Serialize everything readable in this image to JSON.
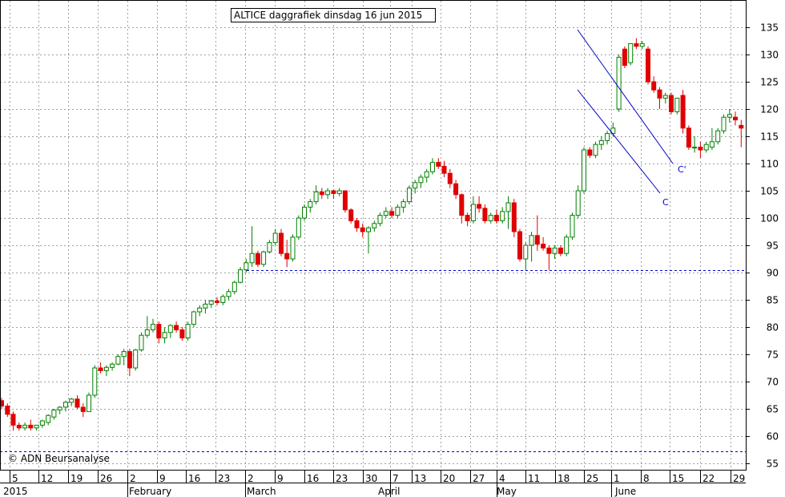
{
  "chart_data": {
    "type": "candlestick",
    "title": "ALTICE daggrafiek dinsdag 16 jun 2015",
    "watermark": "© ADN Beursanalyse",
    "ylim": [
      53,
      138
    ],
    "y_ticks": [
      55,
      60,
      65,
      70,
      75,
      80,
      85,
      90,
      95,
      100,
      105,
      110,
      115,
      120,
      125,
      130,
      135
    ],
    "x_day_ticks": [
      "5",
      "12",
      "19",
      "26",
      "2",
      "9",
      "16",
      "23",
      "2",
      "9",
      "16",
      "23",
      "30",
      "7",
      "13",
      "20",
      "27",
      "4",
      "11",
      "18",
      "25",
      "1",
      "8",
      "15",
      "22",
      "29"
    ],
    "x_month_labels": [
      "2015",
      "February",
      "March",
      "April",
      "May",
      "June"
    ],
    "colors": {
      "up": "#008000",
      "down": "#e00000",
      "grid": "#a0a0a0",
      "reference": "#0000cc",
      "channel": "#0000cc"
    },
    "reference_lines": [
      90.5,
      57.2
    ],
    "channel_labels": [
      "C'",
      "C"
    ],
    "candles": [
      [
        66.5,
        67,
        65,
        65.5
      ],
      [
        65.5,
        66,
        63.5,
        64
      ],
      [
        64,
        64.5,
        61,
        62
      ],
      [
        62,
        62.5,
        61,
        61.5
      ],
      [
        61.5,
        62.5,
        61,
        62
      ],
      [
        62,
        63,
        61,
        61.5
      ],
      [
        61.5,
        62,
        61,
        62
      ],
      [
        62,
        63,
        61.5,
        62.8
      ],
      [
        62.5,
        64,
        62,
        63.8
      ],
      [
        63.5,
        65,
        63,
        64.8
      ],
      [
        64.8,
        65.5,
        64,
        65.3
      ],
      [
        65.3,
        66.5,
        64.5,
        66.2
      ],
      [
        66.2,
        67,
        65.5,
        66.8
      ],
      [
        66.8,
        67.5,
        65,
        65.3
      ],
      [
        65.3,
        66,
        63.5,
        64.5
      ],
      [
        64.5,
        68,
        64.5,
        67.5
      ],
      [
        67.5,
        73,
        67,
        72.5
      ],
      [
        72.5,
        73.5,
        71.5,
        72
      ],
      [
        72,
        73,
        71,
        72.6
      ],
      [
        72.6,
        73.5,
        72,
        73.2
      ],
      [
        73.2,
        75,
        73,
        74.6
      ],
      [
        74.6,
        76,
        73,
        75.5
      ],
      [
        75.5,
        76,
        71,
        72.5
      ],
      [
        72.5,
        76,
        72,
        75.8
      ],
      [
        75.8,
        79,
        75.5,
        78.5
      ],
      [
        78.5,
        82,
        78,
        79.5
      ],
      [
        79.5,
        81.5,
        79,
        80.5
      ],
      [
        80.5,
        81,
        77,
        78
      ],
      [
        78,
        80,
        77,
        79
      ],
      [
        79,
        80.5,
        78,
        80.3
      ],
      [
        80.3,
        81,
        79,
        79.5
      ],
      [
        79.5,
        80,
        77.5,
        78
      ],
      [
        78,
        81,
        77.5,
        80.5
      ],
      [
        80.5,
        83,
        80,
        82.8
      ],
      [
        82.8,
        84,
        82,
        83.5
      ],
      [
        83.5,
        85,
        82.5,
        84.2
      ],
      [
        84.2,
        85,
        83.5,
        84.8
      ],
      [
        84.8,
        85.5,
        84,
        84.5
      ],
      [
        84.5,
        86,
        84,
        85.6
      ],
      [
        85.6,
        87,
        85,
        86.5
      ],
      [
        86.5,
        88.5,
        86,
        88.2
      ],
      [
        88.2,
        91,
        88,
        90.5
      ],
      [
        90.5,
        92.5,
        90,
        91.8
      ],
      [
        91.8,
        98.5,
        91,
        93.5
      ],
      [
        93.5,
        94,
        91,
        91.5
      ],
      [
        91.5,
        94,
        91,
        93.8
      ],
      [
        93.8,
        96,
        93.5,
        95.5
      ],
      [
        95.5,
        98,
        95,
        97.2
      ],
      [
        97.2,
        98,
        93,
        93.5
      ],
      [
        93.5,
        96,
        91,
        92.5
      ],
      [
        92.5,
        97,
        92,
        96.5
      ],
      [
        96.5,
        100.5,
        96,
        100
      ],
      [
        100,
        102.5,
        99.5,
        102
      ],
      [
        102,
        103.5,
        101,
        103
      ],
      [
        103,
        106,
        102.5,
        104.8
      ],
      [
        104.8,
        105.5,
        103.5,
        104.3
      ],
      [
        104.3,
        105.5,
        103.5,
        105
      ],
      [
        105,
        105.2,
        103.5,
        104.5
      ],
      [
        104.5,
        105.5,
        104,
        105
      ],
      [
        105,
        105,
        101,
        101.5
      ],
      [
        101.5,
        101.8,
        99,
        99.5
      ],
      [
        99.5,
        100,
        97.5,
        98.2
      ],
      [
        98.2,
        99,
        96.5,
        97.5
      ],
      [
        97.5,
        98.5,
        93.5,
        98.2
      ],
      [
        98.2,
        99.5,
        97.5,
        99
      ],
      [
        99,
        101,
        98.5,
        100.5
      ],
      [
        100.5,
        102,
        100,
        101.2
      ],
      [
        101.2,
        102,
        100,
        100.5
      ],
      [
        100.5,
        102.5,
        100,
        102
      ],
      [
        102,
        103.5,
        101,
        103
      ],
      [
        103,
        106,
        102.5,
        105.5
      ],
      [
        105.5,
        107,
        104.5,
        106.5
      ],
      [
        106.5,
        108,
        105.5,
        107.5
      ],
      [
        107.5,
        109,
        106.5,
        108.5
      ],
      [
        108.5,
        111,
        108,
        110.2
      ],
      [
        110.2,
        111,
        109,
        109.5
      ],
      [
        109.5,
        110.5,
        107.5,
        108.2
      ],
      [
        108.2,
        109,
        105.5,
        106.3
      ],
      [
        106.3,
        107,
        103.5,
        104.3
      ],
      [
        104.3,
        104.5,
        99,
        100.5
      ],
      [
        100.5,
        101,
        98.5,
        99.5
      ],
      [
        99.5,
        104,
        99,
        102.5
      ],
      [
        102.5,
        104,
        101,
        101.8
      ],
      [
        101.8,
        102.5,
        99,
        99.5
      ],
      [
        99.5,
        101,
        99,
        100.5
      ],
      [
        100.5,
        101.5,
        99,
        99.5
      ],
      [
        99.5,
        102,
        99,
        101.2
      ],
      [
        101.2,
        104,
        98,
        102.8
      ],
      [
        102.8,
        103.5,
        96.5,
        97.5
      ],
      [
        97.5,
        98,
        92,
        92.5
      ],
      [
        92.5,
        95.5,
        90.5,
        95
      ],
      [
        95,
        97.5,
        92,
        96.8
      ],
      [
        96.8,
        100.5,
        94,
        95.2
      ],
      [
        95.2,
        96.5,
        94,
        94.5
      ],
      [
        94.5,
        95,
        90.5,
        93.5
      ],
      [
        93.5,
        95,
        92.5,
        94.5
      ],
      [
        94.5,
        95,
        93,
        93.5
      ],
      [
        93.5,
        97,
        93,
        96.5
      ],
      [
        96.5,
        101,
        96,
        100.5
      ],
      [
        100.5,
        106,
        100,
        105
      ],
      [
        105,
        113,
        104.5,
        112.5
      ],
      [
        112.5,
        113,
        111,
        111.5
      ],
      [
        111.5,
        114,
        111,
        113.5
      ],
      [
        113.5,
        115,
        112.5,
        114.2
      ],
      [
        114.2,
        116,
        113.5,
        115.5
      ],
      [
        115.5,
        117.5,
        115,
        116.5
      ],
      [
        120,
        130,
        119.5,
        129.5
      ],
      [
        131,
        131.5,
        127.5,
        128
      ],
      [
        128.5,
        132,
        128,
        132
      ],
      [
        132,
        133,
        131,
        131.5
      ],
      [
        131.5,
        132.5,
        131,
        132
      ],
      [
        131,
        131.5,
        124.5,
        125
      ],
      [
        125,
        126,
        123,
        123.5
      ],
      [
        123.5,
        124,
        120,
        122
      ],
      [
        122,
        123,
        121,
        122.5
      ],
      [
        122.5,
        123,
        119,
        119.5
      ],
      [
        119.5,
        122,
        119,
        122
      ],
      [
        122.5,
        123.5,
        115.5,
        116.5
      ],
      [
        116.5,
        117,
        112.5,
        113
      ],
      [
        113,
        115,
        112,
        113
      ],
      [
        113,
        114,
        111,
        112.5
      ],
      [
        112.5,
        114,
        112,
        113.5
      ],
      [
        113,
        116.5,
        112.5,
        114
      ],
      [
        114,
        116.5,
        113.5,
        116
      ],
      [
        116,
        119,
        115.5,
        118.5
      ],
      [
        118.5,
        120,
        117.5,
        119
      ],
      [
        118.5,
        119.5,
        117,
        118
      ],
      [
        117,
        118,
        113,
        116.5
      ]
    ]
  }
}
